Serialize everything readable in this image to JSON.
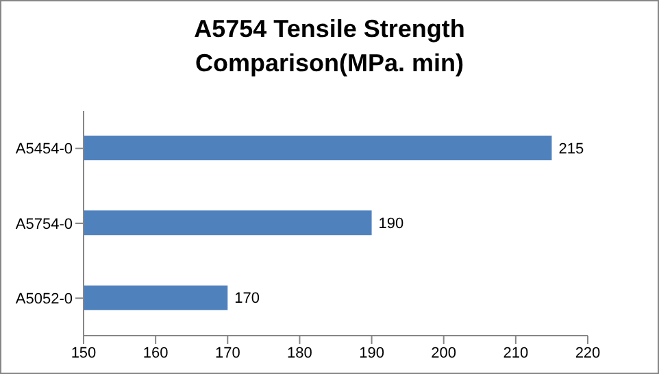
{
  "chart_data": {
    "type": "bar",
    "orientation": "horizontal",
    "title": "A5754 Tensile Strength Comparison(MPa. min)",
    "categories": [
      "A5454-0",
      "A5754-0",
      "A5052-0"
    ],
    "values": [
      215,
      190,
      170
    ],
    "color": "#4f81bd",
    "xlim": [
      150,
      220
    ],
    "xticks": [
      150,
      160,
      170,
      180,
      190,
      200,
      210,
      220
    ],
    "data_labels": true
  }
}
